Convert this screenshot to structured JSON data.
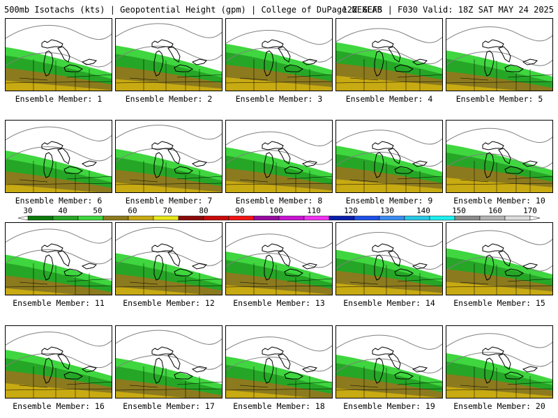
{
  "header": {
    "left_title": "500mb Isotachs (kts) | Geopotential Height (gpm) | College of DuPage NEXLAB",
    "right_title": "12Z GEFS | F030 Valid: 18Z SAT MAY 24 2025"
  },
  "colorbar": {
    "ticks": [
      "30",
      "40",
      "50",
      "60",
      "70",
      "80",
      "90",
      "100",
      "110",
      "120",
      "130",
      "140",
      "150",
      "160",
      "170"
    ],
    "colors": [
      "#0a7a0a",
      "#26a626",
      "#3fd63f",
      "#8c7a1e",
      "#c8aa12",
      "#e6e61e",
      "#8c0a0a",
      "#c80a0a",
      "#f01414",
      "#960aa0",
      "#c814d2",
      "#f032f0",
      "#0a1eaa",
      "#1e50e6",
      "#3c8cf0",
      "#28c8e6",
      "#1ef0f0",
      "#8c8c8c",
      "#b4b4b4",
      "#dcdcdc"
    ]
  },
  "panels": [
    {
      "label": "Ensemble Member: 1"
    },
    {
      "label": "Ensemble Member: 2"
    },
    {
      "label": "Ensemble Member: 3"
    },
    {
      "label": "Ensemble Member: 4"
    },
    {
      "label": "Ensemble Member: 5"
    },
    {
      "label": "Ensemble Member: 6"
    },
    {
      "label": "Ensemble Member: 7"
    },
    {
      "label": "Ensemble Member: 8"
    },
    {
      "label": "Ensemble Member: 9"
    },
    {
      "label": "Ensemble Member: 10"
    },
    {
      "label": "Ensemble Member: 11"
    },
    {
      "label": "Ensemble Member: 12"
    },
    {
      "label": "Ensemble Member: 13"
    },
    {
      "label": "Ensemble Member: 14"
    },
    {
      "label": "Ensemble Member: 15"
    },
    {
      "label": "Ensemble Member: 16"
    },
    {
      "label": "Ensemble Member: 17"
    },
    {
      "label": "Ensemble Member: 18"
    },
    {
      "label": "Ensemble Member: 19"
    },
    {
      "label": "Ensemble Member: 20"
    }
  ]
}
